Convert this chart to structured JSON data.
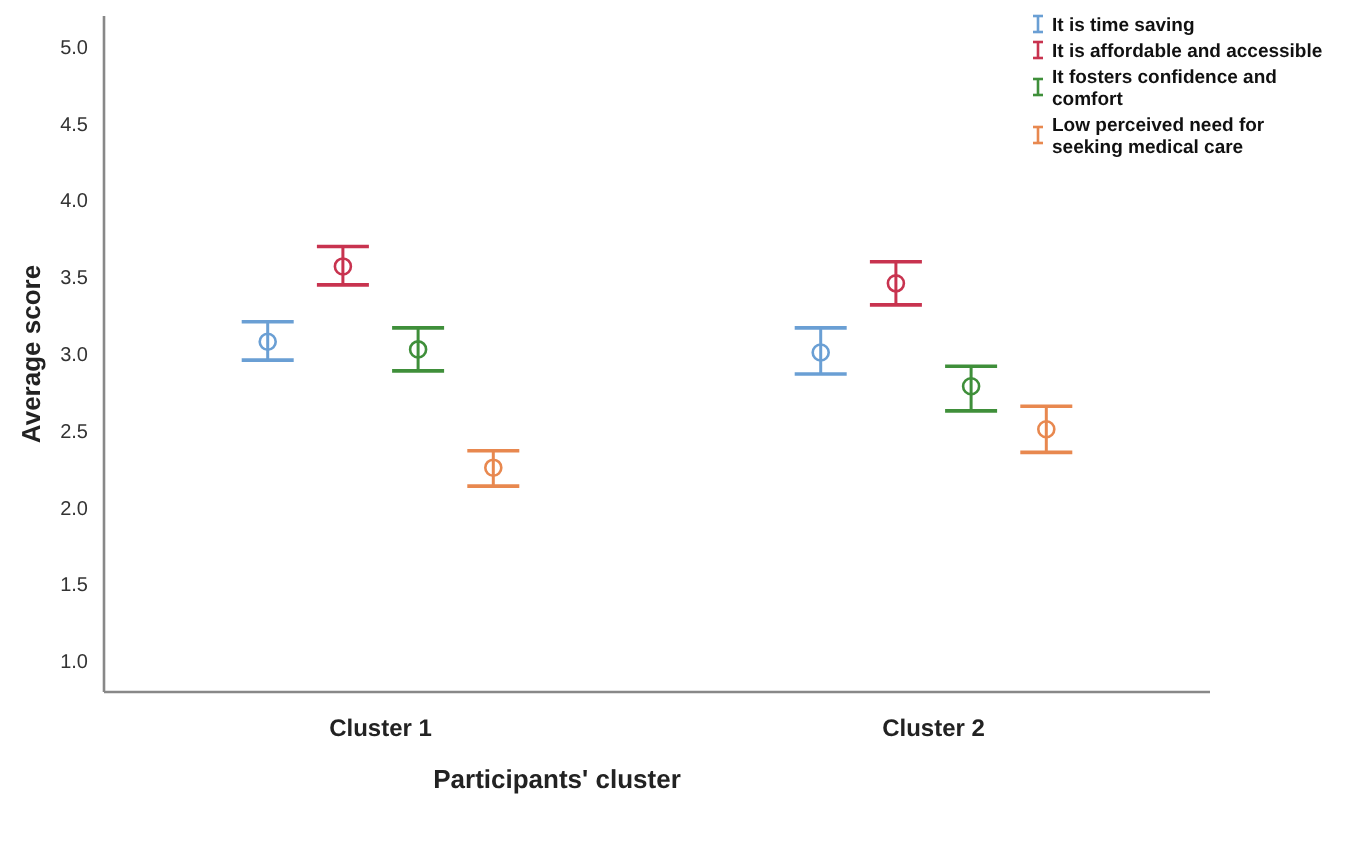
{
  "chart_data": {
    "type": "scatter",
    "xlabel": "Participants' cluster",
    "ylabel": "Average score",
    "categories": [
      "Cluster 1",
      "Cluster 2"
    ],
    "ylim": [
      0.8,
      5.2
    ],
    "yticks": [
      {
        "value": 1,
        "label": "1.0"
      },
      {
        "value": 1.5,
        "label": "1.5"
      },
      {
        "value": 2,
        "label": "2.0"
      },
      {
        "value": 2.5,
        "label": "2.5"
      },
      {
        "value": 3,
        "label": "3.0"
      },
      {
        "value": 3.5,
        "label": "3.5"
      },
      {
        "value": 4,
        "label": "4.0"
      },
      {
        "value": 4.5,
        "label": "4.5"
      },
      {
        "value": 5,
        "label": "5.0"
      }
    ],
    "marker": "circle",
    "grid": false,
    "legend": "top right",
    "series": [
      {
        "name": "It is time saving",
        "color": "#6a9fd4",
        "values": [
          3.08,
          3.01
        ],
        "errors": [
          [
            2.96,
            3.21
          ],
          [
            2.87,
            3.17
          ]
        ]
      },
      {
        "name": "It is affordable and accessible",
        "color": "#c8334f",
        "values": [
          3.57,
          3.46
        ],
        "errors": [
          [
            3.45,
            3.7
          ],
          [
            3.32,
            3.6
          ]
        ]
      },
      {
        "name": "It fosters confidence and comfort",
        "color": "#3f8f3a",
        "values": [
          3.03,
          2.79
        ],
        "errors": [
          [
            2.89,
            3.17
          ],
          [
            2.63,
            2.92
          ]
        ]
      },
      {
        "name": "Low perceived need for seeking medical care",
        "color": "#e8884f",
        "values": [
          2.26,
          2.51
        ],
        "errors": [
          [
            2.14,
            2.37
          ],
          [
            2.36,
            2.66
          ]
        ]
      }
    ]
  }
}
